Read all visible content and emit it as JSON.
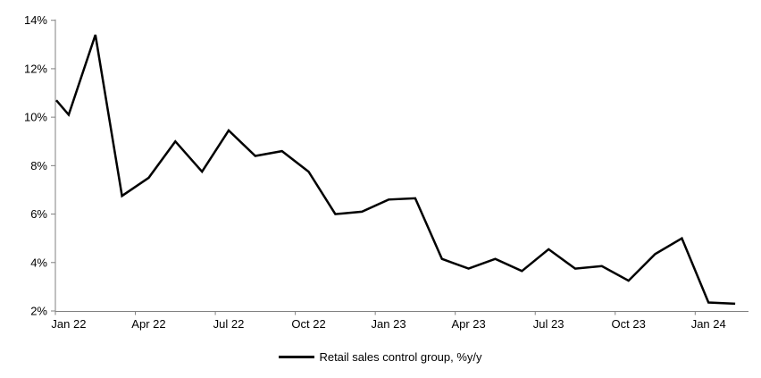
{
  "chart_data": {
    "type": "line",
    "title": "",
    "xlabel": "",
    "ylabel": "",
    "ylim": [
      2,
      14
    ],
    "grid": false,
    "legend_position": "bottom",
    "y_tick_labels": [
      "14%",
      "12%",
      "10%",
      "8%",
      "6%",
      "4%",
      "2%"
    ],
    "y_tick_values": [
      14,
      12,
      10,
      8,
      6,
      4,
      2
    ],
    "x_tick_labels": [
      "Jan 22",
      "Apr 22",
      "Jul 22",
      "Oct 22",
      "Jan 23",
      "Apr 23",
      "Jul 23",
      "Oct 23",
      "Jan 24"
    ],
    "categories": [
      "Jan 22",
      "Feb 22",
      "Mar 22",
      "Apr 22",
      "May 22",
      "Jun 22",
      "Jul 22",
      "Aug 22",
      "Sep 22",
      "Oct 22",
      "Nov 22",
      "Dec 22",
      "Jan 23",
      "Feb 23",
      "Mar 23",
      "Apr 23",
      "May 23",
      "Jun 23",
      "Jul 23",
      "Aug 23",
      "Sep 23",
      "Oct 23",
      "Nov 23",
      "Dec 23",
      "Jan 24",
      "Feb 24"
    ],
    "series": [
      {
        "name": "Retail sales control group, %y/y",
        "color": "#000000",
        "left_edge_clip_value": 10.7,
        "values": [
          10.1,
          13.4,
          6.75,
          7.5,
          9.0,
          7.75,
          9.45,
          8.4,
          8.6,
          7.75,
          6.0,
          6.1,
          6.6,
          6.65,
          4.15,
          3.75,
          4.15,
          3.65,
          4.55,
          3.75,
          3.85,
          3.25,
          4.35,
          5.0,
          2.35,
          2.3
        ]
      }
    ],
    "legend": {
      "label": "Retail sales control group, %y/y"
    },
    "colors": {
      "line": "#000000",
      "axis": "#808080",
      "text": "#000000",
      "background": "#ffffff"
    }
  }
}
